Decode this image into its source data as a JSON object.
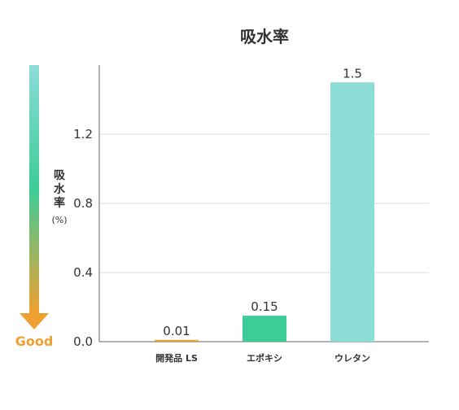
{
  "chart_data": {
    "type": "bar",
    "title": "吸水率",
    "categories": [
      "開発品 LS",
      "エポキシ",
      "ウレタン"
    ],
    "values": [
      0.01,
      0.15,
      1.5
    ],
    "value_labels": [
      "0.01",
      "0.15",
      "1.5"
    ],
    "bar_colors": [
      "#f0a030",
      "#3dcc98",
      "#8cdcd8"
    ],
    "ylabel": "吸水率",
    "ylabel_unit": "(%)",
    "ylim": [
      0,
      1.6
    ],
    "yticks": [
      0.0,
      0.4,
      0.8,
      1.2
    ],
    "ytick_labels": [
      "0.0",
      "0.4",
      "0.8",
      "1.2"
    ],
    "grid": true,
    "indicator_label": "Good",
    "indicator_colors": {
      "top": "#8cdcd8",
      "middle": "#3dcc98",
      "bottom": "#f0a030"
    }
  }
}
